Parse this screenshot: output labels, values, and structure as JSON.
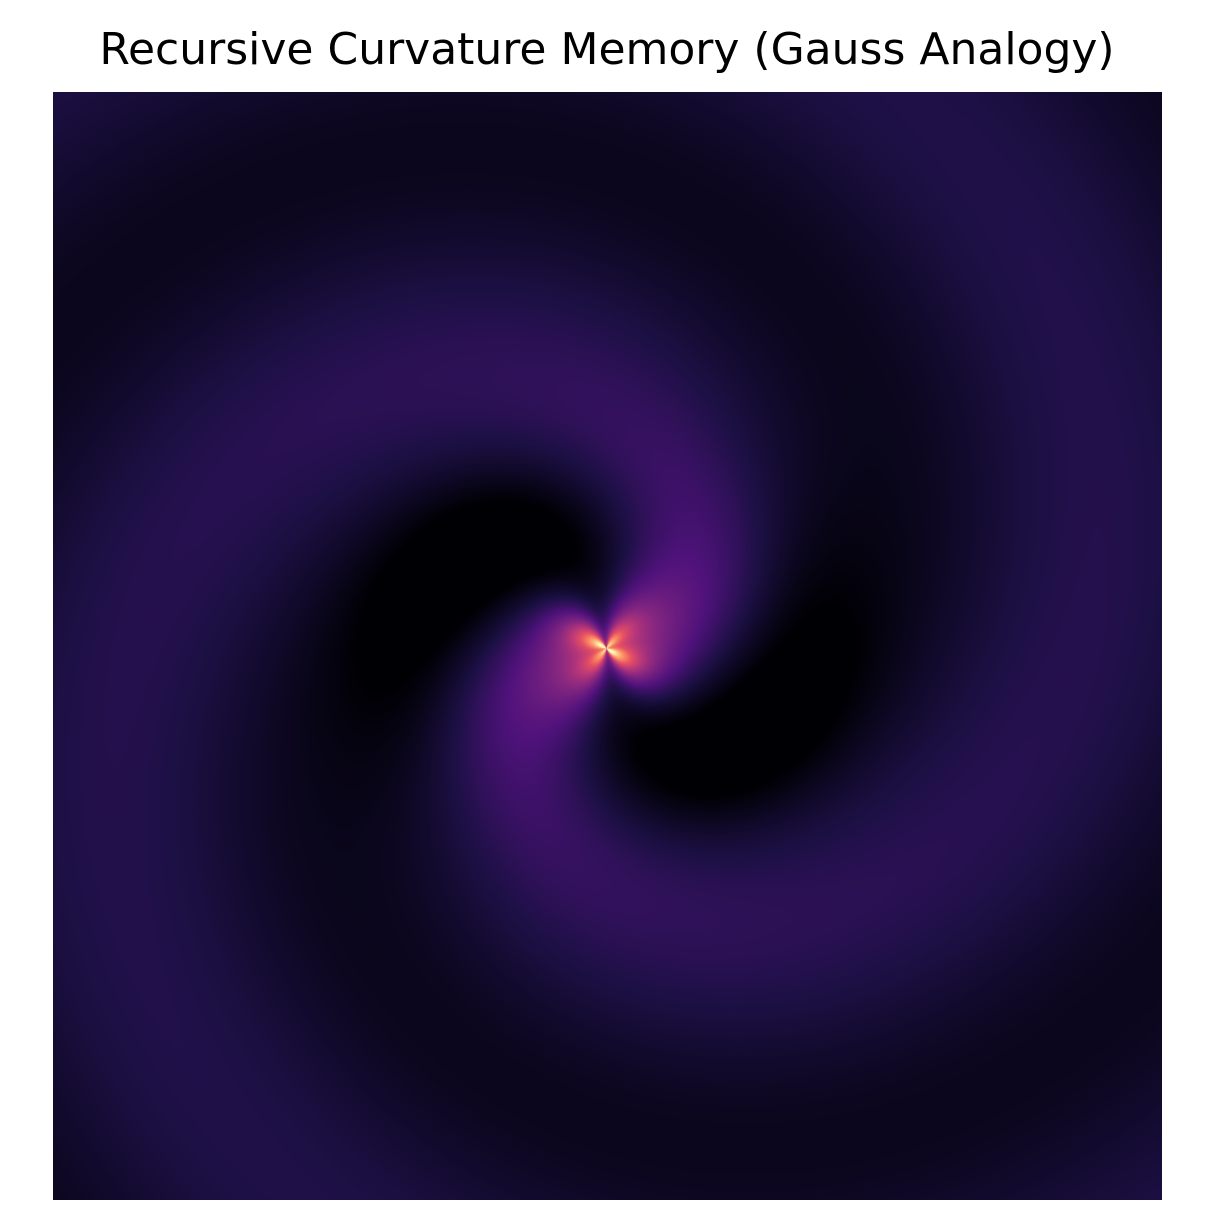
{
  "chart_data": {
    "type": "heatmap",
    "title": "Recursive Curvature Memory (Gauss Analogy)",
    "xlabel": "",
    "ylabel": "",
    "axes_visible": false,
    "grid": false,
    "colorbar": false,
    "colormap": "magma",
    "colors": {
      "low": "#000004",
      "mid": "#3b0f70",
      "high": "#fcfdbf"
    },
    "field": {
      "pattern": "two-arm spiral",
      "arms": 2,
      "peak_lobes": 4,
      "peak_location": "center"
    }
  }
}
